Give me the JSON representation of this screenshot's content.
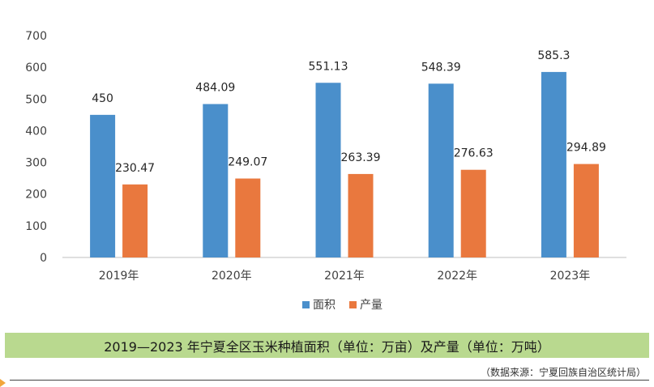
{
  "chart_data": {
    "type": "bar",
    "categories": [
      "2019年",
      "2020年",
      "2021年",
      "2022年",
      "2023年"
    ],
    "series": [
      {
        "name": "面积",
        "values": [
          450,
          484.09,
          551.13,
          548.39,
          585.3
        ],
        "labels": [
          "450",
          "484.09",
          "551.13",
          "548.39",
          "585.3"
        ],
        "color": "#4a8fcb"
      },
      {
        "name": "产量",
        "values": [
          230.47,
          249.07,
          263.39,
          276.63,
          294.89
        ],
        "labels": [
          "230.47",
          "249.07",
          "263.39",
          "276.63",
          "294.89"
        ],
        "color": "#e9783e"
      }
    ],
    "ylim": [
      0,
      700
    ],
    "yticks": [
      "0",
      "100",
      "200",
      "300",
      "400",
      "500",
      "600",
      "700"
    ],
    "legend_position": "bottom",
    "grid": false
  },
  "caption": "2019—2023 年宁夏全区玉米种植面积（单位：万亩）及产量（单位：万吨）",
  "source": "（数据来源：宁夏回族自治区统计局）"
}
